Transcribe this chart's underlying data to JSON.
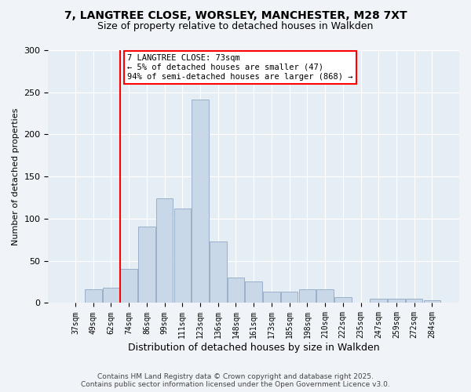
{
  "title_line1": "7, LANGTREE CLOSE, WORSLEY, MANCHESTER, M28 7XT",
  "title_line2": "Size of property relative to detached houses in Walkden",
  "xlabel": "Distribution of detached houses by size in Walkden",
  "ylabel": "Number of detached properties",
  "categories": [
    "37sqm",
    "49sqm",
    "62sqm",
    "74sqm",
    "86sqm",
    "99sqm",
    "111sqm",
    "123sqm",
    "136sqm",
    "148sqm",
    "161sqm",
    "173sqm",
    "185sqm",
    "198sqm",
    "210sqm",
    "222sqm",
    "235sqm",
    "247sqm",
    "259sqm",
    "272sqm",
    "284sqm"
  ],
  "values": [
    0,
    16,
    18,
    40,
    91,
    124,
    112,
    241,
    73,
    30,
    26,
    13,
    13,
    16,
    16,
    7,
    0,
    5,
    5,
    5,
    3
  ],
  "bar_color": "#c8d8e8",
  "bar_edge_color": "#9ab0c8",
  "vline_color": "red",
  "vline_index": 3,
  "annotation_text": "7 LANGTREE CLOSE: 73sqm\n← 5% of detached houses are smaller (47)\n94% of semi-detached houses are larger (868) →",
  "annotation_box_color": "white",
  "annotation_box_edge_color": "red",
  "ylim": [
    0,
    300
  ],
  "yticks": [
    0,
    50,
    100,
    150,
    200,
    250,
    300
  ],
  "footer_line1": "Contains HM Land Registry data © Crown copyright and database right 2025.",
  "footer_line2": "Contains public sector information licensed under the Open Government Licence v3.0.",
  "bg_color": "#f0f4f8",
  "plot_bg_color": "#e6eef5",
  "grid_color": "#ffffff",
  "title1_fontsize": 10,
  "title2_fontsize": 9,
  "xlabel_fontsize": 9,
  "ylabel_fontsize": 8,
  "tick_fontsize": 7,
  "footer_fontsize": 6.5,
  "annotation_fontsize": 7.5
}
